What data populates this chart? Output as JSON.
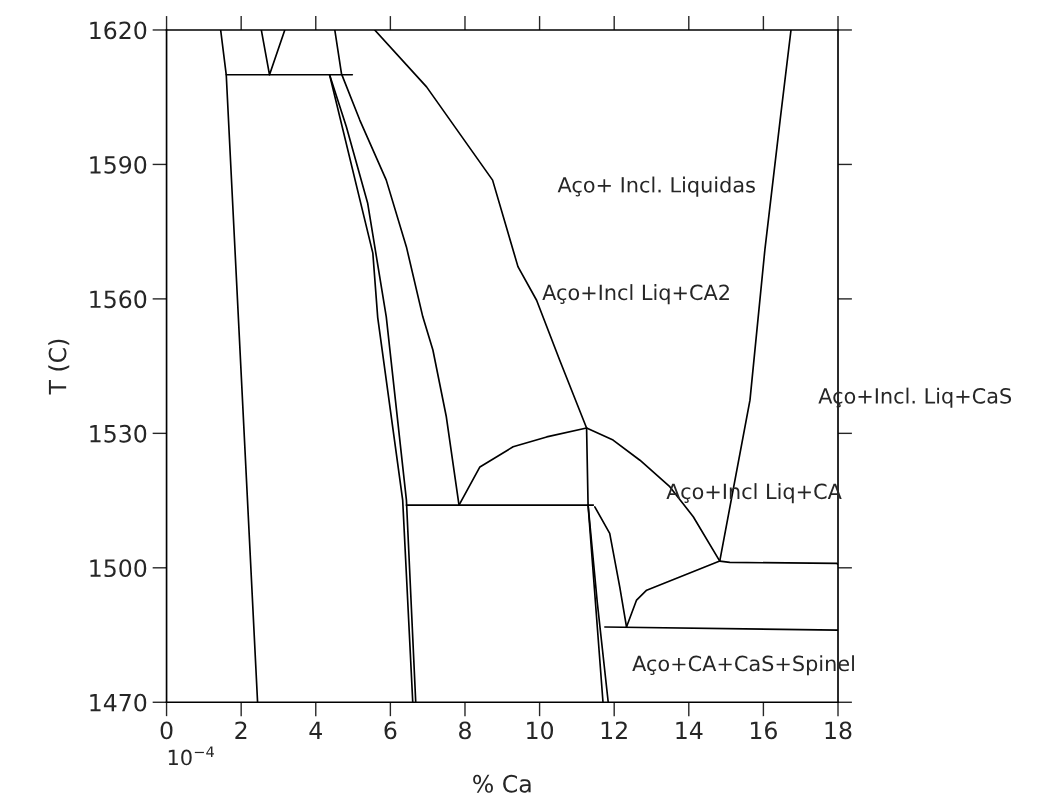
{
  "chart_data": {
    "type": "line",
    "xlabel": "% Ca",
    "ylabel": "T (C)",
    "xlim": [
      0,
      18
    ],
    "ylim": [
      1470,
      1620
    ],
    "xticks": [
      0,
      2,
      4,
      6,
      8,
      10,
      12,
      14,
      16,
      18
    ],
    "yticks": [
      1470,
      1500,
      1530,
      1560,
      1590,
      1620
    ],
    "grid": false,
    "legend": false,
    "marker": "none",
    "line_style": "solid",
    "series": [
      {
        "color": "#000000",
        "x": [
          1.45,
          1.6,
          2.44
        ],
        "values": [
          1620,
          1610,
          1470
        ]
      },
      {
        "color": "#000000",
        "x": [
          1.6,
          4.98
        ],
        "values": [
          1610,
          1610
        ]
      },
      {
        "color": "#000000",
        "x": [
          2.54,
          2.76,
          3.17
        ],
        "values": [
          1620,
          1610,
          1620
        ]
      },
      {
        "color": "#000000",
        "x": [
          4.51,
          4.69,
          5.18,
          5.89,
          6.43,
          6.87,
          7.14,
          7.5,
          7.84
        ],
        "values": [
          1620,
          1610.2,
          1599.9,
          1586.5,
          1571.6,
          1556.0,
          1548.6,
          1533.7,
          1514.0
        ]
      },
      {
        "color": "#000000",
        "x": [
          4.37,
          5.53,
          5.66,
          6.33,
          6.6
        ],
        "values": [
          1610,
          1570.2,
          1555.9,
          1515.1,
          1470
        ]
      },
      {
        "color": "#000000",
        "x": [
          4.37,
          4.82,
          5.39,
          5.89,
          6.43,
          6.68
        ],
        "values": [
          1610,
          1598.4,
          1581.4,
          1556.0,
          1515.1,
          1470
        ]
      },
      {
        "color": "#000000",
        "x": [
          5.58,
          6.97,
          8.74,
          9.42,
          9.92,
          10.54,
          11.26,
          11.3,
          11.7
        ],
        "values": [
          1620,
          1607.3,
          1586.5,
          1567.2,
          1559.7,
          1546.3,
          1531.2,
          1514,
          1470
        ]
      },
      {
        "color": "#000000",
        "x": [
          7.84,
          8.4,
          9.29,
          10.19,
          11.26
        ],
        "values": [
          1514.0,
          1522.5,
          1527.0,
          1529.2,
          1531.2
        ]
      },
      {
        "color": "#000000",
        "x": [
          6.43,
          11.44
        ],
        "values": [
          1514,
          1514
        ]
      },
      {
        "color": "#000000",
        "x": [
          11.3,
          11.55,
          11.84
        ],
        "values": [
          1514,
          1492,
          1470
        ]
      },
      {
        "color": "#000000",
        "x": [
          11.48,
          11.88,
          12.15,
          12.33
        ],
        "values": [
          1513.6,
          1507.7,
          1495.7,
          1486.8
        ]
      },
      {
        "color": "#000000",
        "x": [
          12.33,
          12.6,
          12.87,
          14.83
        ],
        "values": [
          1486.8,
          1492.8,
          1495.0,
          1501.5
        ]
      },
      {
        "color": "#000000",
        "x": [
          14.83,
          15.1,
          17.96,
          18
        ],
        "values": [
          1501.5,
          1501.2,
          1501.0,
          1500.8
        ]
      },
      {
        "color": "#000000",
        "x": [
          11.75,
          18
        ],
        "values": [
          1486.8,
          1486.1
        ]
      },
      {
        "color": "#000000",
        "x": [
          11.26,
          11.97,
          12.69,
          13.49,
          14.12,
          14.83
        ],
        "values": [
          1531.2,
          1528.5,
          1524.0,
          1518.1,
          1511.4,
          1501.5
        ]
      },
      {
        "color": "#000000",
        "x": [
          14.83,
          15.64,
          16.04,
          16.45,
          16.74
        ],
        "values": [
          1501.5,
          1537.4,
          1571.0,
          1600.0,
          1620
        ]
      }
    ],
    "annotations": [
      "Aço+ Incl. Liquidas",
      "Aço+Incl Liq+CA2",
      "Aço+Incl. Liq+CaS",
      "Aço+Incl Liq+CA",
      "Aço+CA+CaS+Spinel",
      "10$^{−4}$"
    ]
  }
}
